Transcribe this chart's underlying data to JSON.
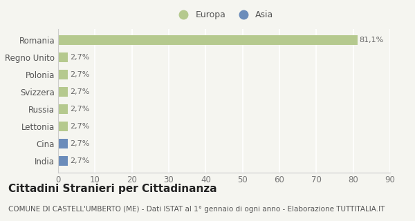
{
  "categories": [
    "India",
    "Cina",
    "Lettonia",
    "Russia",
    "Svizzera",
    "Polonia",
    "Regno Unito",
    "Romania"
  ],
  "values": [
    2.7,
    2.7,
    2.7,
    2.7,
    2.7,
    2.7,
    2.7,
    81.1
  ],
  "colors": [
    "#6b8cba",
    "#6b8cba",
    "#b5c98e",
    "#b5c98e",
    "#b5c98e",
    "#b5c98e",
    "#b5c98e",
    "#b5c98e"
  ],
  "bar_labels": [
    "2,7%",
    "2,7%",
    "2,7%",
    "2,7%",
    "2,7%",
    "2,7%",
    "2,7%",
    "81,1%"
  ],
  "legend_labels": [
    "Europa",
    "Asia"
  ],
  "legend_colors": [
    "#b5c98e",
    "#6b8cba"
  ],
  "title": "Cittadini Stranieri per Cittadinanza",
  "subtitle": "COMUNE DI CASTELL'UMBERTO (ME) - Dati ISTAT al 1° gennaio di ogni anno - Elaborazione TUTTITALIA.IT",
  "xlim": [
    0,
    90
  ],
  "xticks": [
    0,
    10,
    20,
    30,
    40,
    50,
    60,
    70,
    80,
    90
  ],
  "background_color": "#f5f5f0",
  "grid_color": "#ffffff",
  "bar_height": 0.55,
  "title_fontsize": 11,
  "subtitle_fontsize": 7.5,
  "tick_fontsize": 8.5,
  "label_fontsize": 8,
  "legend_fontsize": 9
}
